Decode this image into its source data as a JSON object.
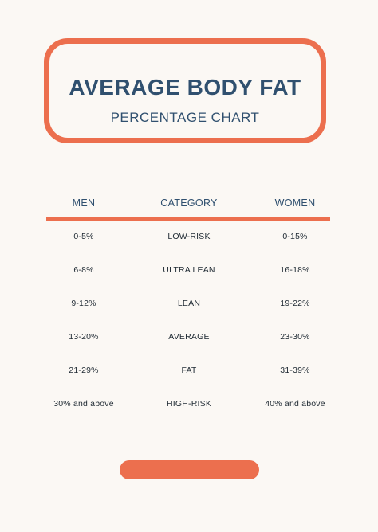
{
  "header": {
    "title": "AVERAGE BODY FAT",
    "subtitle": "PERCENTAGE CHART"
  },
  "table": {
    "columns": [
      "MEN",
      "CATEGORY",
      "WOMEN"
    ],
    "rows": [
      {
        "men": "0-5%",
        "category": "LOW-RISK",
        "women": "0-15%"
      },
      {
        "men": "6-8%",
        "category": "ULTRA LEAN",
        "women": "16-18%"
      },
      {
        "men": "9-12%",
        "category": "LEAN",
        "women": "19-22%"
      },
      {
        "men": "13-20%",
        "category": "AVERAGE",
        "women": "23-30%"
      },
      {
        "men": "21-29%",
        "category": "FAT",
        "women": "31-39%"
      },
      {
        "men": "30% and above",
        "category": "HIGH-RISK",
        "women": "40% and above"
      }
    ]
  },
  "colors": {
    "accent": "#EC6F4E",
    "heading": "#30506F",
    "text": "#1F2A33",
    "background": "#FBF8F4"
  }
}
